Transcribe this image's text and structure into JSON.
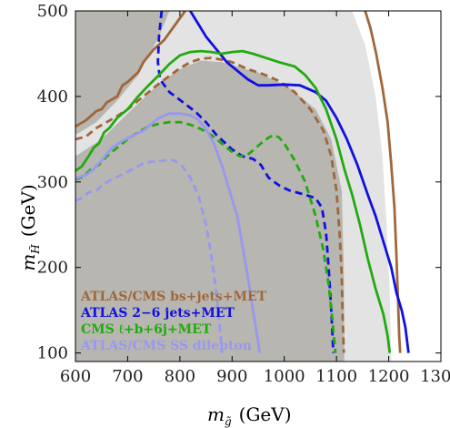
{
  "chart_data": {
    "type": "line",
    "xlabel": "m",
    "xlabel_sub": "g̃",
    "xlabel_unit": "(GeV)",
    "ylabel": "m",
    "ylabel_sub": "H̃",
    "ylabel_unit": "(GeV)",
    "xlim": [
      600,
      1300
    ],
    "ylim": [
      90,
      500
    ],
    "xticks": [
      600,
      700,
      800,
      900,
      1000,
      1100,
      1200,
      1300
    ],
    "yticks": [
      100,
      200,
      300,
      400,
      500
    ],
    "grid": false,
    "legend_position": "bottom-left",
    "regions": [
      {
        "name": "light excluded region",
        "color": "#e3e3e3",
        "points": [
          [
            600,
            500
          ],
          [
            1130,
            500
          ],
          [
            1155,
            460
          ],
          [
            1175,
            400
          ],
          [
            1188,
            330
          ],
          [
            1196,
            250
          ],
          [
            1202,
            170
          ],
          [
            1205,
            90
          ],
          [
            600,
            90
          ]
        ]
      },
      {
        "name": "dark excluded region",
        "color": "#b8b6b0",
        "points": [
          [
            600,
            500
          ],
          [
            780,
            500
          ],
          [
            760,
            470
          ],
          [
            720,
            425
          ],
          [
            680,
            395
          ],
          [
            640,
            370
          ],
          [
            600,
            355
          ],
          [
            600,
            90
          ],
          [
            1115,
            90
          ],
          [
            1114,
            200
          ],
          [
            1110,
            290
          ],
          [
            1090,
            350
          ],
          [
            1060,
            385
          ],
          [
            1010,
            410
          ],
          [
            950,
            428
          ],
          [
            880,
            440
          ],
          [
            840,
            442
          ],
          [
            800,
            432
          ],
          [
            760,
            415
          ],
          [
            700,
            380
          ],
          [
            650,
            350
          ],
          [
            600,
            330
          ]
        ]
      }
    ],
    "series": [
      {
        "name": "ATLAS/CMS bs+jets+MET",
        "color": "#a0673a",
        "dash": "solid",
        "points": [
          [
            600,
            365
          ],
          [
            620,
            372
          ],
          [
            640,
            383
          ],
          [
            650,
            385
          ],
          [
            660,
            393
          ],
          [
            680,
            400
          ],
          [
            690,
            413
          ],
          [
            700,
            417
          ],
          [
            720,
            428
          ],
          [
            730,
            440
          ],
          [
            750,
            455
          ],
          [
            770,
            466
          ],
          [
            790,
            483
          ],
          [
            810,
            500
          ]
        ]
      },
      {
        "name": "ATLAS/CMS bs+jets+MET",
        "color": "#a0673a",
        "dash": "dashed",
        "points": [
          [
            600,
            350
          ],
          [
            620,
            353
          ],
          [
            640,
            363
          ],
          [
            660,
            370
          ],
          [
            680,
            377
          ],
          [
            700,
            385
          ],
          [
            720,
            395
          ],
          [
            740,
            405
          ],
          [
            760,
            415
          ],
          [
            780,
            424
          ],
          [
            800,
            433
          ],
          [
            820,
            440
          ],
          [
            840,
            444
          ],
          [
            860,
            445
          ],
          [
            880,
            443
          ],
          [
            900,
            440
          ],
          [
            930,
            432
          ],
          [
            960,
            426
          ],
          [
            990,
            418
          ],
          [
            1020,
            405
          ],
          [
            1050,
            385
          ],
          [
            1075,
            360
          ],
          [
            1090,
            330
          ],
          [
            1100,
            290
          ],
          [
            1106,
            240
          ],
          [
            1110,
            190
          ],
          [
            1112,
            140
          ],
          [
            1114,
            100
          ]
        ]
      },
      {
        "name": "ATLAS/CMS bs+jets+MET",
        "color": "#a0673a",
        "dash": "solid",
        "points": [
          [
            1155,
            500
          ],
          [
            1165,
            480
          ],
          [
            1176,
            450
          ],
          [
            1188,
            410
          ],
          [
            1198,
            370
          ],
          [
            1205,
            320
          ],
          [
            1211,
            270
          ],
          [
            1215,
            210
          ],
          [
            1218,
            160
          ],
          [
            1220,
            120
          ],
          [
            1222,
            100
          ]
        ]
      },
      {
        "name": "ATLAS 2-6 jets+MET",
        "color": "#1010e0",
        "dash": "dashed",
        "points": [
          [
            765,
            500
          ],
          [
            760,
            470
          ],
          [
            758,
            440
          ],
          [
            762,
            420
          ],
          [
            780,
            405
          ],
          [
            800,
            396
          ],
          [
            830,
            382
          ],
          [
            850,
            370
          ],
          [
            870,
            355
          ],
          [
            900,
            338
          ],
          [
            920,
            330
          ],
          [
            940,
            327
          ],
          [
            955,
            320
          ],
          [
            970,
            305
          ],
          [
            990,
            296
          ],
          [
            1010,
            290
          ],
          [
            1040,
            285
          ],
          [
            1060,
            281
          ],
          [
            1072,
            270
          ],
          [
            1080,
            240
          ],
          [
            1085,
            200
          ],
          [
            1090,
            150
          ],
          [
            1094,
            100
          ]
        ]
      },
      {
        "name": "ATLAS 2-6 jets+MET",
        "color": "#1010e0",
        "dash": "solid",
        "points": [
          [
            820,
            500
          ],
          [
            835,
            485
          ],
          [
            850,
            470
          ],
          [
            870,
            455
          ],
          [
            890,
            440
          ],
          [
            910,
            430
          ],
          [
            930,
            420
          ],
          [
            950,
            413
          ],
          [
            970,
            413
          ],
          [
            1000,
            414
          ],
          [
            1030,
            413
          ],
          [
            1060,
            405
          ],
          [
            1080,
            395
          ],
          [
            1100,
            375
          ],
          [
            1120,
            350
          ],
          [
            1140,
            320
          ],
          [
            1160,
            285
          ],
          [
            1175,
            260
          ],
          [
            1190,
            230
          ],
          [
            1205,
            200
          ],
          [
            1215,
            170
          ],
          [
            1225,
            150
          ],
          [
            1232,
            130
          ],
          [
            1238,
            100
          ]
        ]
      },
      {
        "name": "CMS ℓ+b+6j+MET",
        "color": "#22aa11",
        "dash": "solid",
        "points": [
          [
            600,
            313
          ],
          [
            612,
            318
          ],
          [
            625,
            330
          ],
          [
            635,
            340
          ],
          [
            645,
            345
          ],
          [
            655,
            358
          ],
          [
            665,
            363
          ],
          [
            680,
            375
          ],
          [
            700,
            385
          ],
          [
            720,
            400
          ],
          [
            740,
            413
          ],
          [
            760,
            425
          ],
          [
            780,
            438
          ],
          [
            800,
            448
          ],
          [
            820,
            452
          ],
          [
            840,
            453
          ],
          [
            860,
            452
          ],
          [
            880,
            450
          ],
          [
            900,
            452
          ],
          [
            920,
            453
          ],
          [
            940,
            450
          ],
          [
            960,
            446
          ],
          [
            990,
            440
          ],
          [
            1020,
            435
          ],
          [
            1040,
            425
          ],
          [
            1060,
            410
          ],
          [
            1080,
            385
          ],
          [
            1100,
            350
          ],
          [
            1115,
            315
          ],
          [
            1130,
            285
          ],
          [
            1145,
            250
          ],
          [
            1160,
            210
          ],
          [
            1175,
            175
          ],
          [
            1190,
            145
          ],
          [
            1198,
            120
          ],
          [
            1202,
            100
          ]
        ]
      },
      {
        "name": "CMS ℓ+b+6j+MET",
        "color": "#22aa11",
        "dash": "dashed",
        "points": [
          [
            600,
            303
          ],
          [
            615,
            306
          ],
          [
            630,
            315
          ],
          [
            645,
            320
          ],
          [
            660,
            330
          ],
          [
            680,
            340
          ],
          [
            700,
            350
          ],
          [
            720,
            358
          ],
          [
            740,
            365
          ],
          [
            760,
            368
          ],
          [
            780,
            370
          ],
          [
            800,
            370
          ],
          [
            820,
            367
          ],
          [
            840,
            362
          ],
          [
            860,
            355
          ],
          [
            880,
            345
          ],
          [
            900,
            335
          ],
          [
            915,
            330
          ],
          [
            930,
            332
          ],
          [
            940,
            337
          ],
          [
            955,
            345
          ],
          [
            970,
            352
          ],
          [
            980,
            355
          ],
          [
            990,
            352
          ],
          [
            1000,
            345
          ],
          [
            1020,
            325
          ],
          [
            1040,
            300
          ],
          [
            1060,
            260
          ],
          [
            1075,
            220
          ],
          [
            1085,
            180
          ],
          [
            1092,
            140
          ],
          [
            1098,
            100
          ]
        ]
      },
      {
        "name": "ATLAS/CMS SS dilepton",
        "color": "#9898f0",
        "dash": "solid",
        "points": [
          [
            600,
            304
          ],
          [
            620,
            308
          ],
          [
            635,
            315
          ],
          [
            650,
            325
          ],
          [
            670,
            340
          ],
          [
            690,
            348
          ],
          [
            710,
            354
          ],
          [
            730,
            360
          ],
          [
            750,
            370
          ],
          [
            760,
            375
          ],
          [
            780,
            380
          ],
          [
            800,
            380
          ],
          [
            820,
            378
          ],
          [
            835,
            373
          ],
          [
            850,
            362
          ],
          [
            865,
            345
          ],
          [
            880,
            320
          ],
          [
            895,
            290
          ],
          [
            910,
            260
          ],
          [
            920,
            225
          ],
          [
            930,
            190
          ],
          [
            940,
            150
          ],
          [
            948,
            120
          ],
          [
            953,
            100
          ]
        ]
      },
      {
        "name": "ATLAS/CMS SS dilepton",
        "color": "#9898f0",
        "dash": "dashed",
        "points": [
          [
            600,
            278
          ],
          [
            615,
            282
          ],
          [
            625,
            288
          ],
          [
            640,
            290
          ],
          [
            655,
            298
          ],
          [
            670,
            303
          ],
          [
            690,
            309
          ],
          [
            710,
            315
          ],
          [
            730,
            322
          ],
          [
            750,
            324
          ],
          [
            770,
            325
          ],
          [
            780,
            326
          ],
          [
            790,
            325
          ],
          [
            805,
            318
          ],
          [
            820,
            305
          ],
          [
            835,
            285
          ],
          [
            850,
            250
          ],
          [
            860,
            215
          ],
          [
            868,
            180
          ],
          [
            874,
            145
          ],
          [
            878,
            120
          ],
          [
            880,
            100
          ]
        ]
      }
    ],
    "legend": [
      {
        "label": "ATLAS/CMS bs+jets+MET",
        "color": "#a0673a"
      },
      {
        "label": "ATLAS 2−6 jets+MET",
        "color": "#1010e0"
      },
      {
        "label": "CMS ℓ+b+6j+MET",
        "color": "#22aa11"
      },
      {
        "label": "ATLAS/CMS SS dilepton",
        "color": "#9898f0"
      }
    ]
  }
}
